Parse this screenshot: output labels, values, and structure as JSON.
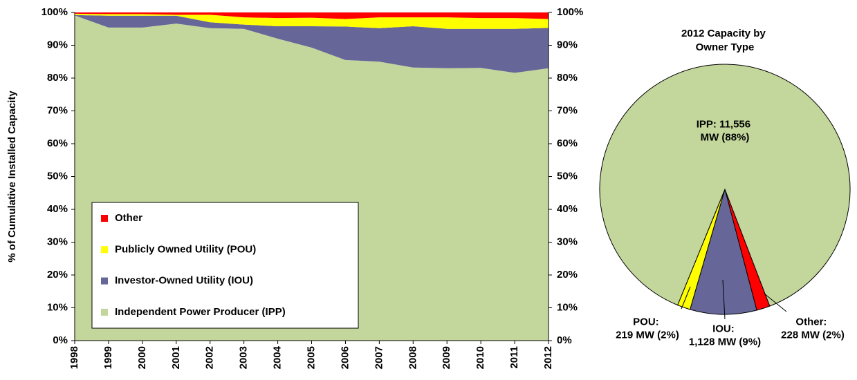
{
  "chart_data": [
    {
      "type": "area",
      "stacked": true,
      "ylabel": "% of Cumulative Installed Capacity",
      "x": [
        1998,
        1999,
        2000,
        2001,
        2002,
        2003,
        2004,
        2005,
        2006,
        2007,
        2008,
        2009,
        2010,
        2011,
        2012
      ],
      "xlim": [
        1998,
        2012
      ],
      "xticks": [
        1998,
        1999,
        2000,
        2001,
        2002,
        2003,
        2004,
        2005,
        2006,
        2007,
        2008,
        2009,
        2010,
        2011,
        2012
      ],
      "ylim": [
        0,
        100
      ],
      "yticks": [
        {
          "value": 0,
          "label": "0%"
        },
        {
          "value": 10,
          "label": "10%"
        },
        {
          "value": 20,
          "label": "20%"
        },
        {
          "value": 30,
          "label": "30%"
        },
        {
          "value": 40,
          "label": "40%"
        },
        {
          "value": 50,
          "label": "50%"
        },
        {
          "value": 60,
          "label": "60%"
        },
        {
          "value": 70,
          "label": "70%"
        },
        {
          "value": 80,
          "label": "80%"
        },
        {
          "value": 90,
          "label": "90%"
        },
        {
          "value": 100,
          "label": "100%"
        }
      ],
      "legend": "bottom-left",
      "series": [
        {
          "name": "Independent Power Producer (IPP)",
          "color": "#c3d69b",
          "values": [
            99.1,
            95.4,
            95.4,
            96.6,
            95.2,
            95.0,
            92.0,
            89.3,
            85.5,
            85.0,
            83.2,
            83.0,
            83.1,
            81.6,
            83.0
          ]
        },
        {
          "name": "Investor-Owned Utility (IOU)",
          "color": "#666699",
          "values": [
            0.1,
            3.6,
            3.6,
            2.4,
            1.8,
            1.3,
            3.8,
            6.5,
            10.2,
            10.2,
            12.6,
            12.0,
            11.9,
            13.4,
            12.3
          ]
        },
        {
          "name": "Publicly Owned Utility (POU)",
          "color": "#ffff00",
          "values": [
            0.4,
            0.5,
            0.5,
            0.3,
            2.3,
            2.2,
            2.5,
            2.6,
            2.3,
            3.3,
            2.7,
            3.5,
            3.3,
            3.3,
            2.7
          ]
        },
        {
          "name": "Other",
          "color": "#ff0000",
          "values": [
            0.4,
            0.5,
            0.5,
            0.7,
            0.7,
            1.5,
            1.7,
            1.6,
            2.0,
            1.5,
            1.5,
            1.5,
            1.7,
            1.7,
            2.0
          ]
        }
      ]
    },
    {
      "type": "pie",
      "title": "2012 Capacity by Owner Type",
      "values": [
        228,
        1128,
        219,
        11556
      ],
      "value_labels": [
        "Other: 228 MW (2%)",
        "IOU: 1,128 MW (9%)",
        "POU: 219 MW (2%)",
        "IPP: 11,556 MW (88%)"
      ],
      "colors": [
        "#ff0000",
        "#666699",
        "#ffff00",
        "#c3d69b"
      ]
    }
  ]
}
